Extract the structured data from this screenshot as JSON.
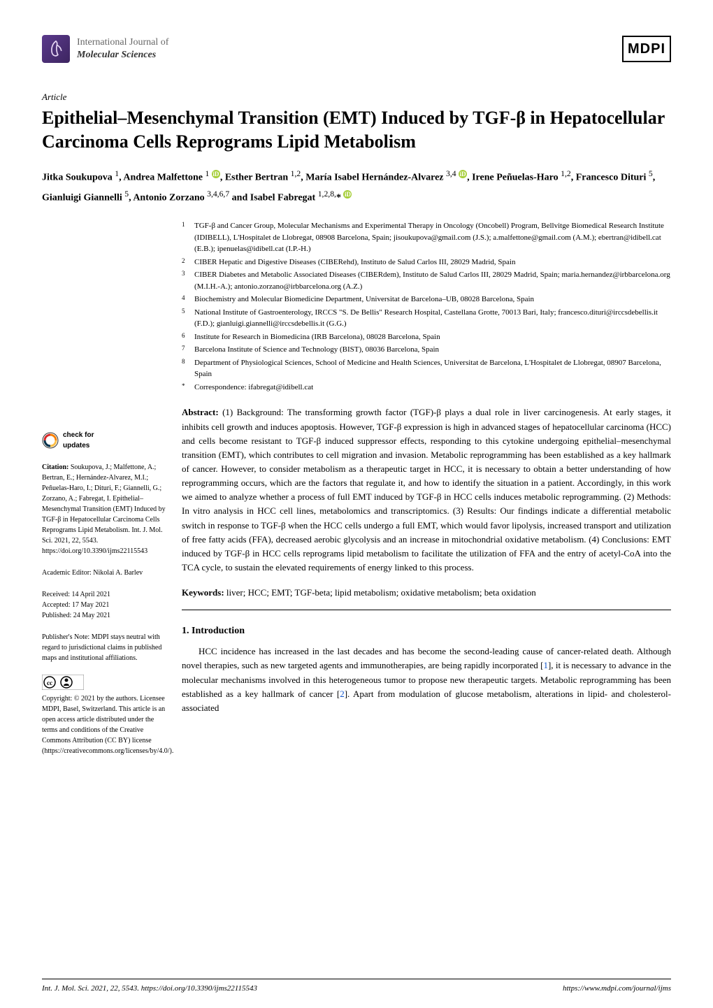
{
  "journal": {
    "line1": "International Journal of",
    "line2": "Molecular Sciences",
    "publisher": "MDPI"
  },
  "article_type": "Article",
  "title": "Epithelial–Mesenchymal Transition (EMT) Induced by TGF-β in Hepatocellular Carcinoma Cells Reprograms Lipid Metabolism",
  "authors_html": "Jitka Soukupova ¹ , Andrea Malfettone ¹ ⓘ, Esther Bertran ¹·², María Isabel Hernández-Alvarez ³·⁴ ⓘ, Irene Peñuelas-Haro ¹·², Francesco Dituri ⁵, Gianluigi Giannelli ⁵, Antonio Zorzano ³·⁴·⁶·⁷ and Isabel Fabregat ¹·²·⁸·* ⓘ",
  "affiliations": [
    {
      "num": "1",
      "text": "TGF-β and Cancer Group, Molecular Mechanisms and Experimental Therapy in Oncology (Oncobell) Program, Bellvitge Biomedical Research Institute (IDIBELL), L'Hospitalet de Llobregat, 08908 Barcelona, Spain; jisoukupova@gmail.com (J.S.); a.malfettone@gmail.com (A.M.); ebertran@idibell.cat (E.B.); ipenuelas@idibell.cat (I.P.-H.)"
    },
    {
      "num": "2",
      "text": "CIBER Hepatic and Digestive Diseases (CIBERehd), Instituto de Salud Carlos III, 28029 Madrid, Spain"
    },
    {
      "num": "3",
      "text": "CIBER Diabetes and Metabolic Associated Diseases (CIBERdem), Instituto de Salud Carlos III, 28029 Madrid, Spain; maria.hernandez@irbbarcelona.org (M.I.H.-A.); antonio.zorzano@irbbarcelona.org (A.Z.)"
    },
    {
      "num": "4",
      "text": "Biochemistry and Molecular Biomedicine Department, Universitat de Barcelona–UB, 08028 Barcelona, Spain"
    },
    {
      "num": "5",
      "text": "National Institute of Gastroenterology, IRCCS \"S. De Bellis\" Research Hospital, Castellana Grotte, 70013 Bari, Italy; francesco.dituri@irccsdebellis.it (F.D.); gianluigi.giannelli@irccsdebellis.it (G.G.)"
    },
    {
      "num": "6",
      "text": "Institute for Research in Biomedicina (IRB Barcelona), 08028 Barcelona, Spain"
    },
    {
      "num": "7",
      "text": "Barcelona Institute of Science and Technology (BIST), 08036 Barcelona, Spain"
    },
    {
      "num": "8",
      "text": "Department of Physiological Sciences, School of Medicine and Health Sciences, Universitat de Barcelona, L'Hospitalet de Llobregat, 08907 Barcelona, Spain"
    },
    {
      "num": "*",
      "text": "Correspondence: ifabregat@idibell.cat"
    }
  ],
  "abstract": {
    "label": "Abstract:",
    "text": " (1) Background: The transforming growth factor (TGF)-β plays a dual role in liver carcinogenesis. At early stages, it inhibits cell growth and induces apoptosis. However, TGF-β expression is high in advanced stages of hepatocellular carcinoma (HCC) and cells become resistant to TGF-β induced suppressor effects, responding to this cytokine undergoing epithelial–mesenchymal transition (EMT), which contributes to cell migration and invasion. Metabolic reprogramming has been established as a key hallmark of cancer. However, to consider metabolism as a therapeutic target in HCC, it is necessary to obtain a better understanding of how reprogramming occurs, which are the factors that regulate it, and how to identify the situation in a patient. Accordingly, in this work we aimed to analyze whether a process of full EMT induced by TGF-β in HCC cells induces metabolic reprogramming. (2) Methods: In vitro analysis in HCC cell lines, metabolomics and transcriptomics. (3) Results: Our findings indicate a differential metabolic switch in response to TGF-β when the HCC cells undergo a full EMT, which would favor lipolysis, increased transport and utilization of free fatty acids (FFA), decreased aerobic glycolysis and an increase in mitochondrial oxidative metabolism. (4) Conclusions: EMT induced by TGF-β in HCC cells reprograms lipid metabolism to facilitate the utilization of FFA and the entry of acetyl-CoA into the TCA cycle, to sustain the elevated requirements of energy linked to this process."
  },
  "keywords": {
    "label": "Keywords:",
    "text": " liver; HCC; EMT; TGF-beta; lipid metabolism; oxidative metabolism; beta oxidation"
  },
  "section_heading": "1. Introduction",
  "intro_text": "HCC incidence has increased in the last decades and has become the second-leading cause of cancer-related death. Although novel therapies, such as new targeted agents and immunotherapies, are being rapidly incorporated [1], it is necessary to advance in the molecular mechanisms involved in this heterogeneous tumor to propose new therapeutic targets. Metabolic reprogramming has been established as a key hallmark of cancer [2]. Apart from modulation of glucose metabolism, alterations in lipid- and cholesterol-associated",
  "sidebar": {
    "check_updates": "check for updates",
    "citation_label": "Citation:",
    "citation_text": " Soukupova, J.; Malfettone, A.; Bertran, E.; Hernández-Alvarez, M.I.; Peñuelas-Haro, I.; Dituri, F.; Giannelli, G.; Zorzano, A.; Fabregat, I. Epithelial–Mesenchymal Transition (EMT) Induced by TGF-β in Hepatocellular Carcinoma Cells Reprograms Lipid Metabolism. Int. J. Mol. Sci. 2021, 22, 5543. https://doi.org/10.3390/ijms22115543",
    "editor": "Academic Editor: Nikolai A. Barlev",
    "received": "Received: 14 April 2021",
    "accepted": "Accepted: 17 May 2021",
    "published": "Published: 24 May 2021",
    "publisher_note_label": "Publisher's Note:",
    "publisher_note_text": " MDPI stays neutral with regard to jurisdictional claims in published maps and institutional affiliations.",
    "cc_label": "CC BY",
    "copyright_label": "Copyright:",
    "copyright_text": " © 2021 by the authors. Licensee MDPI, Basel, Switzerland. This article is an open access article distributed under the terms and conditions of the Creative Commons Attribution (CC BY) license (https://creativecommons.org/licenses/by/4.0/)."
  },
  "footer": {
    "left": "Int. J. Mol. Sci. 2021, 22, 5543. https://doi.org/10.3390/ijms22115543",
    "right": "https://www.mdpi.com/journal/ijms"
  },
  "colors": {
    "logo_bg": "#5b3a8c",
    "orcid": "#a6ce39",
    "link": "#1155cc"
  }
}
